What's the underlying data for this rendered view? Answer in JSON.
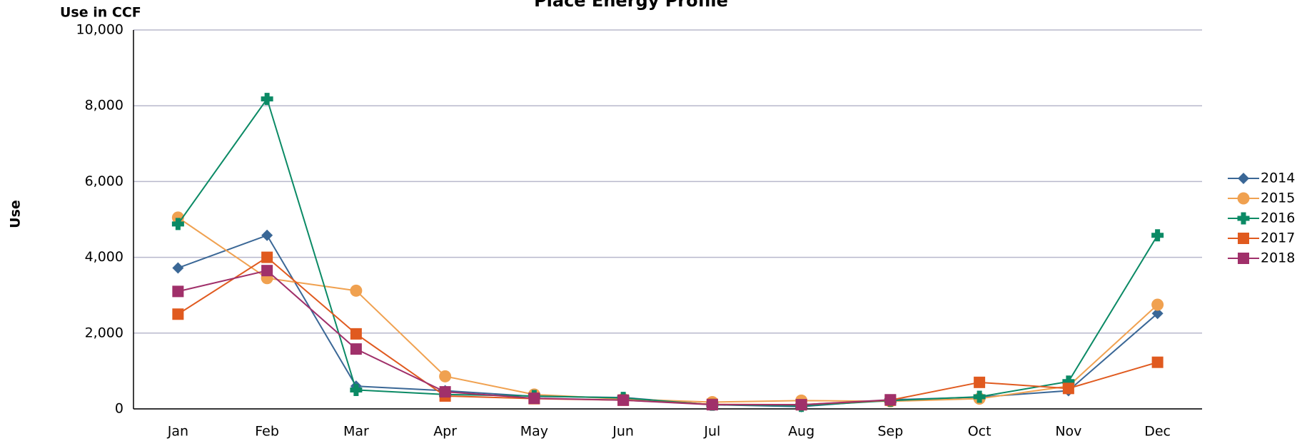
{
  "chart_data": {
    "type": "line",
    "title": "Place Energy Profile",
    "ylabel": "Use",
    "unit_label": "Use in CCF",
    "categories": [
      "Jan",
      "Feb",
      "Mar",
      "Apr",
      "May",
      "Jun",
      "Jul",
      "Aug",
      "Sep",
      "Oct",
      "Nov",
      "Dec"
    ],
    "series": [
      {
        "name": "2014",
        "color": "#3a6796",
        "marker": "diamond",
        "values": [
          3720,
          4580,
          600,
          480,
          330,
          300,
          110,
          60,
          240,
          310,
          480,
          2520
        ]
      },
      {
        "name": "2015",
        "color": "#f0a150",
        "marker": "circle",
        "values": [
          5050,
          3450,
          3120,
          860,
          380,
          260,
          180,
          220,
          200,
          270,
          600,
          2750
        ]
      },
      {
        "name": "2016",
        "color": "#0b8a65",
        "marker": "plus",
        "values": [
          4880,
          8180,
          500,
          380,
          340,
          290,
          110,
          80,
          220,
          320,
          720,
          4580
        ]
      },
      {
        "name": "2017",
        "color": "#e05a1f",
        "marker": "square",
        "values": [
          2500,
          4000,
          1980,
          340,
          270,
          230,
          120,
          110,
          230,
          700,
          540,
          1230
        ]
      },
      {
        "name": "2018",
        "color": "#a0306a",
        "marker": "square",
        "values": [
          3100,
          3650,
          1580,
          450,
          280,
          230,
          110,
          110,
          240,
          null,
          null,
          null
        ]
      }
    ],
    "ylim": [
      0,
      10000
    ],
    "yticks": [
      0,
      {
        "value": 2000,
        "label": "2,000"
      },
      {
        "value": 4000,
        "label": "4,000"
      },
      {
        "value": 6000,
        "label": "6,000"
      },
      {
        "value": 8000,
        "label": "8,000"
      },
      {
        "value": 10000,
        "label": "10,000"
      }
    ],
    "grid": true,
    "legend": "right"
  }
}
